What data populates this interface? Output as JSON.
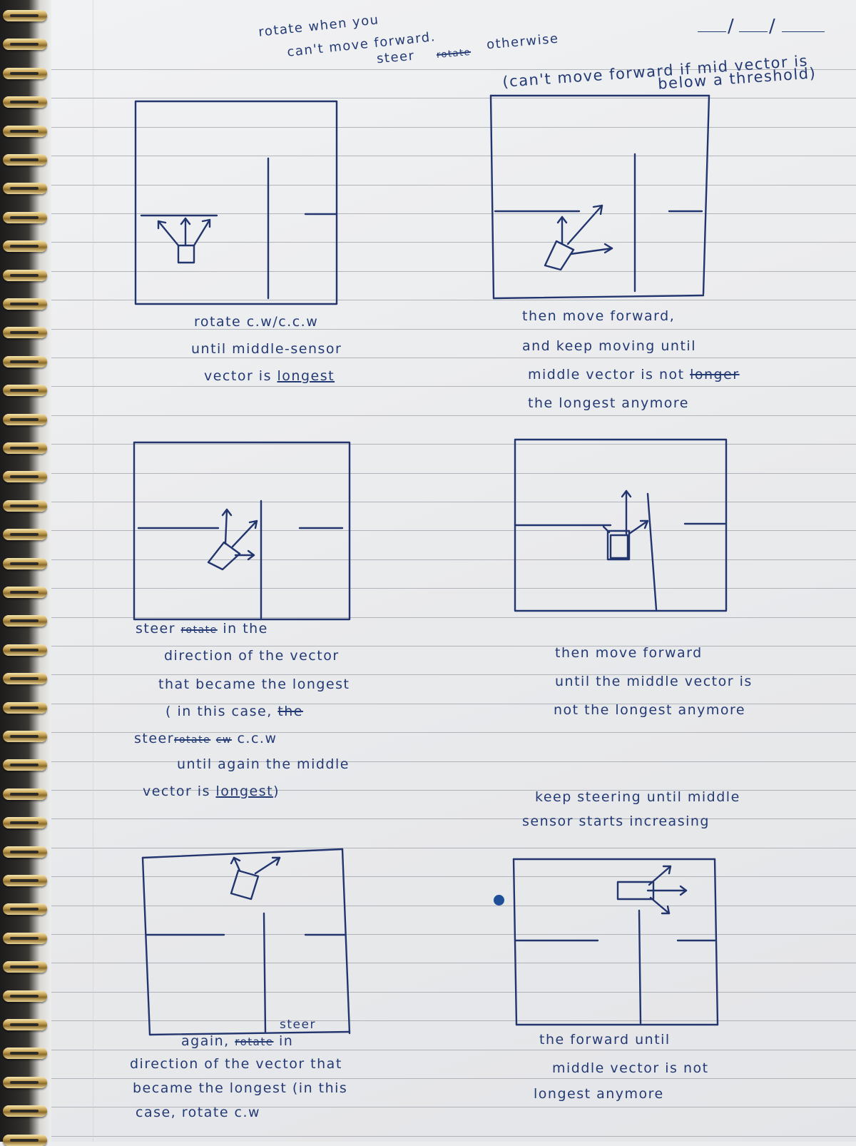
{
  "header": {
    "line1": "rotate   when   you",
    "line2": "can't   move  forward.",
    "line3a": "steer",
    "line3b": "rotate",
    "line3c": "otherwise",
    "note1": "(can't move forward if  mid vector is",
    "note2": "below  a threshold)"
  },
  "caption1": {
    "l1": "rotate  c.w/c.c.w",
    "l2": "until   middle-sensor",
    "l3a": "vector  is",
    "l3b": "longest"
  },
  "caption2": {
    "l1": "then    move  forward,",
    "l2": "and   keep   moving    until",
    "l3a": "middle vector    is   not",
    "l3b": "longer",
    "l4": "the  longest    anymore"
  },
  "caption3": {
    "l1a": "steer",
    "l1b": "rotate",
    "l1c": "in   the",
    "l2": "direction  of   the  vector",
    "l3": "that  became  the  longest",
    "l4a": "( in  this   case,",
    "l4b": "the",
    "l5a": "steer",
    "l5b": "rotate",
    "l5c": "cw",
    "l5d": "c.c.w",
    "l6": "until   again  the  middle",
    "l7a": "vector   is",
    "l7b": "longest",
    "l7c": ")"
  },
  "caption4": {
    "l1": "then    move    forward",
    "l2": "until   the   middle  vector   is",
    "l3": "not  the  longest  anymore"
  },
  "caption5": {
    "l1": "keep   steering   until   middle",
    "l2": "sensor   starts   increasing"
  },
  "caption6": {
    "l0": "steer",
    "l1a": "again,",
    "l1b": "rotate",
    "l1c": "in",
    "l2": "direction   of   the   vector  that",
    "l3": "became  the  longest  (in  this",
    "l4": "case,   rotate    c.w"
  },
  "caption7": {
    "l1": "the    forward      until",
    "l2": "middle  vector     is    not",
    "l3": "longest   anymore"
  },
  "style": {
    "ink": "#243a74",
    "paper": "#eceef0",
    "rule": "#9ea2a8",
    "ring_gold": "#c9a55a",
    "dot": "#1f4f96"
  }
}
